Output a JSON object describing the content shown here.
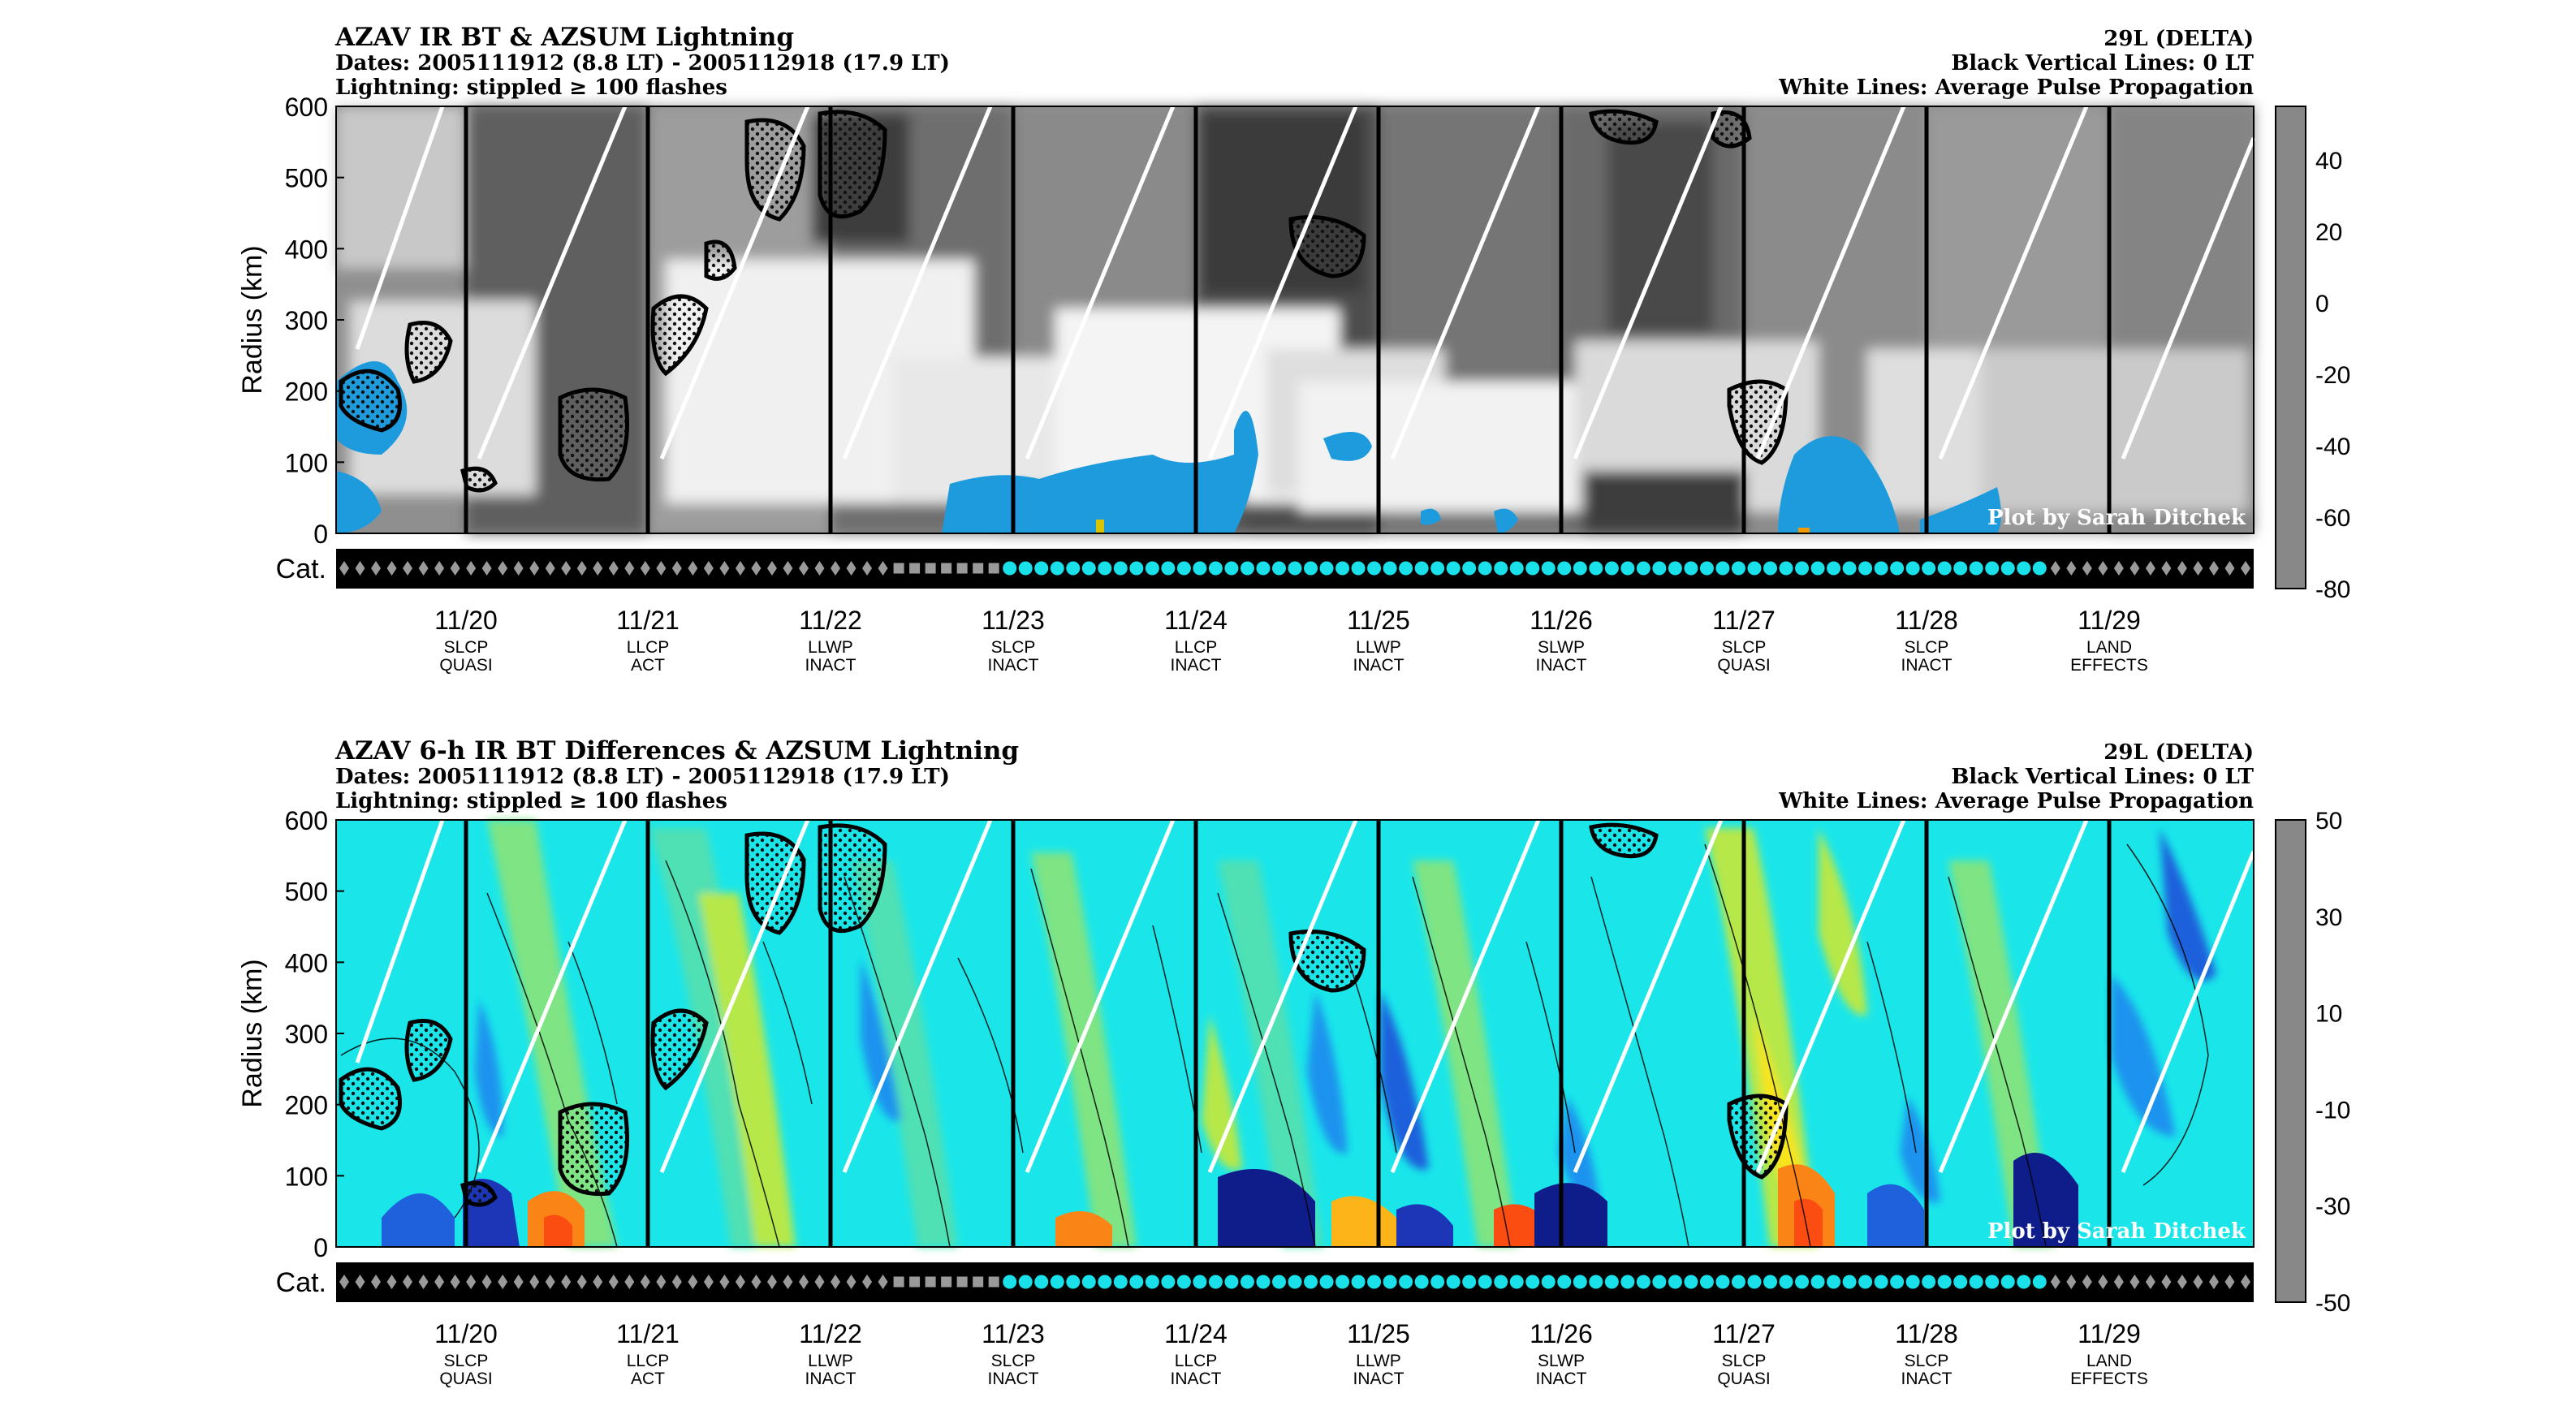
{
  "chart_data": [
    {
      "type": "heatmap",
      "id": "top",
      "title": "AZAV IR BT & AZSUM Lightning",
      "subtitle_lines": [
        "Dates: 2005111912 (8.8 LT) - 2005112918 (17.9 LT)",
        "Lightning: stippled ≥ 100 flashes"
      ],
      "right_title_lines": [
        "29L (DELTA)",
        "Black Vertical Lines: 0 LT",
        "White Lines: Average Pulse Propagation"
      ],
      "ylabel": "Radius (km)",
      "ylim": [
        0,
        600
      ],
      "yticks": [
        "0",
        "100",
        "200",
        "300",
        "400",
        "500",
        "600"
      ],
      "cat_label": "Cat.",
      "dates": [
        "11/20",
        "11/21",
        "11/22",
        "11/23",
        "11/24",
        "11/25",
        "11/26",
        "11/27",
        "11/28",
        "11/29"
      ],
      "categories": [
        [
          "SLCP",
          "QUASI"
        ],
        [
          "LLCP",
          "ACT"
        ],
        [
          "LLWP",
          "INACT"
        ],
        [
          "SLCP",
          "INACT"
        ],
        [
          "LLCP",
          "INACT"
        ],
        [
          "LLWP",
          "INACT"
        ],
        [
          "SLWP",
          "INACT"
        ],
        [
          "SLCP",
          "QUASI"
        ],
        [
          "SLCP",
          "INACT"
        ],
        [
          "LAND",
          "EFFECTS"
        ]
      ],
      "colorbar_ticks": [
        "40",
        "20",
        "0",
        "-20",
        "-40",
        "-60",
        "-80"
      ],
      "colorbar_range": [
        -80,
        55
      ],
      "credit": "Plot by Sarah Ditchek"
    },
    {
      "type": "heatmap",
      "id": "bottom",
      "title": "AZAV 6-h IR BT Differences & AZSUM Lightning",
      "subtitle_lines": [
        "Dates: 2005111912 (8.8 LT) - 2005112918 (17.9 LT)",
        "Lightning: stippled ≥ 100 flashes"
      ],
      "right_title_lines": [
        "29L (DELTA)",
        "Black Vertical Lines: 0 LT",
        "White Lines: Average Pulse Propagation"
      ],
      "ylabel": "Radius (km)",
      "ylim": [
        0,
        600
      ],
      "yticks": [
        "0",
        "100",
        "200",
        "300",
        "400",
        "500",
        "600"
      ],
      "cat_label": "Cat.",
      "dates": [
        "11/20",
        "11/21",
        "11/22",
        "11/23",
        "11/24",
        "11/25",
        "11/26",
        "11/27",
        "11/28",
        "11/29"
      ],
      "categories": [
        [
          "SLCP",
          "QUASI"
        ],
        [
          "LLCP",
          "ACT"
        ],
        [
          "LLWP",
          "INACT"
        ],
        [
          "SLCP",
          "INACT"
        ],
        [
          "LLCP",
          "INACT"
        ],
        [
          "LLWP",
          "INACT"
        ],
        [
          "SLWP",
          "INACT"
        ],
        [
          "SLCP",
          "QUASI"
        ],
        [
          "SLCP",
          "INACT"
        ],
        [
          "LAND",
          "EFFECTS"
        ]
      ],
      "colorbar_ticks": [
        "50",
        "30",
        "10",
        "-10",
        "-30",
        "-50"
      ],
      "colorbar_range": [
        -50,
        50
      ],
      "credit": "Plot by Sarah Ditchek"
    }
  ],
  "colors": {
    "gray_ramp": [
      "#0a0a0a",
      "#262626",
      "#404040",
      "#5a5a5a",
      "#737373",
      "#8c8c8c",
      "#a3a3a3",
      "#bababa",
      "#cfcfcf",
      "#e3e3e3",
      "#f5f5f5",
      "#1e9bdc",
      "#6b8f2a",
      "#d8c400",
      "#f39a00",
      "#e84a00",
      "#d10000",
      "#6b6b6b"
    ],
    "diff_ramp": [
      "#fb4d12",
      "#fb8416",
      "#fcb419",
      "#f7e41b",
      "#b6e84a",
      "#7fe483",
      "#4fe0b4",
      "#1ae6ea",
      "#14c5f1",
      "#1a93ee",
      "#1f60dc",
      "#1c36b7",
      "#0f1d8a"
    ],
    "cat_symbol": "#9a9a9a",
    "cat_storm": "#1ae0ea"
  },
  "cat_sequence": "dddddddddddddddddddddddddddddddddddsssssssooooooooooooooooooooooooooooooooooooooooooooooooooooooooooooooooooddddddddddddd"
}
